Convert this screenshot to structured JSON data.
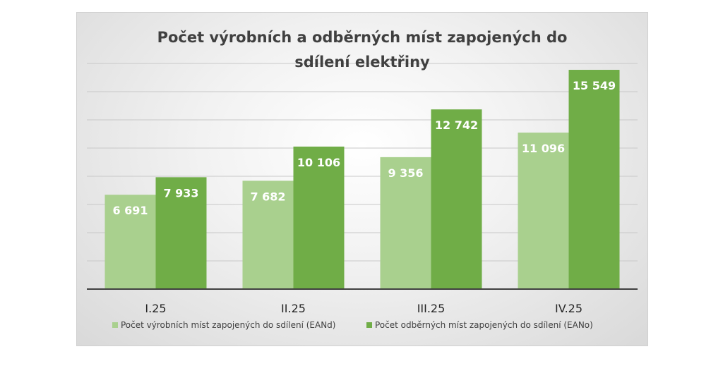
{
  "chart_data": {
    "type": "bar",
    "title": "Počet výrobních a odběrných míst zapojených do sdílení elektřiny",
    "title_lines": [
      "Počet výrobních a odběrných míst zapojených do",
      "sdílení elektřiny"
    ],
    "categories": [
      "I.25",
      "II.25",
      "III.25",
      "IV.25"
    ],
    "series": [
      {
        "name": "Počet výrobních míst zapojených do sdílení (EANd)",
        "values": [
          6691,
          7682,
          9356,
          11096
        ],
        "labels": [
          "6 691",
          "7 682",
          "9 356",
          "11 096"
        ],
        "color": "#a9d08e"
      },
      {
        "name": "Počet odběrných míst zapojených do sdílení (EANo)",
        "values": [
          7933,
          10106,
          12742,
          15549
        ],
        "labels": [
          "7 933",
          "10 106",
          "12 742",
          "15 549"
        ],
        "color": "#70ad47"
      }
    ],
    "ylim": [
      0,
      16000
    ],
    "y_gridline_step": 2000,
    "grid": true,
    "legend_position": "bottom",
    "xlabel": "",
    "ylabel": ""
  }
}
